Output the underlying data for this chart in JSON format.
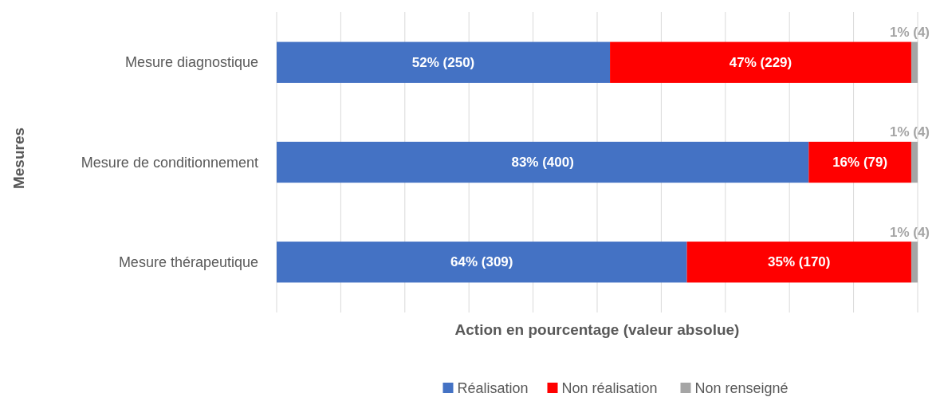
{
  "chart_data": {
    "type": "bar",
    "orientation": "horizontal",
    "stacked": true,
    "xlabel": "Action en pourcentage (valeur absolue)",
    "ylabel": "Mesures",
    "categories": [
      "Mesure diagnostique",
      "Mesure de conditionnement",
      "Mesure thérapeutique"
    ],
    "series": [
      {
        "name": "Réalisation",
        "color": "#4472c4",
        "values": [
          52,
          83,
          64
        ],
        "value_labels": [
          "52% (250)",
          "83% (400)",
          "64% (309)"
        ]
      },
      {
        "name": "Non réalisation",
        "color": "#ff0000",
        "values": [
          47,
          16,
          35
        ],
        "value_labels": [
          "47% (229)",
          "16% (79)",
          "35% (170)"
        ]
      },
      {
        "name": "Non renseigné",
        "color": "#a5a5a5",
        "values": [
          1,
          1,
          1
        ],
        "value_labels": [
          "1% (4)",
          "1% (4)",
          "1% (4)"
        ]
      }
    ],
    "xlim": [
      0,
      100
    ],
    "xticks": [
      {
        "value": 0,
        "label": null
      },
      {
        "value": 10,
        "label": null
      },
      {
        "value": 20,
        "label": null
      },
      {
        "value": 30,
        "label": null
      },
      {
        "value": 40,
        "label": null
      },
      {
        "value": 50,
        "label": null
      },
      {
        "value": 60,
        "label": null
      },
      {
        "value": 70,
        "label": null
      },
      {
        "value": 80,
        "label": null
      },
      {
        "value": 90,
        "label": null
      },
      {
        "value": 100,
        "label": null
      }
    ],
    "tick_labels": "y",
    "grid": "x",
    "legend": "bottom"
  }
}
